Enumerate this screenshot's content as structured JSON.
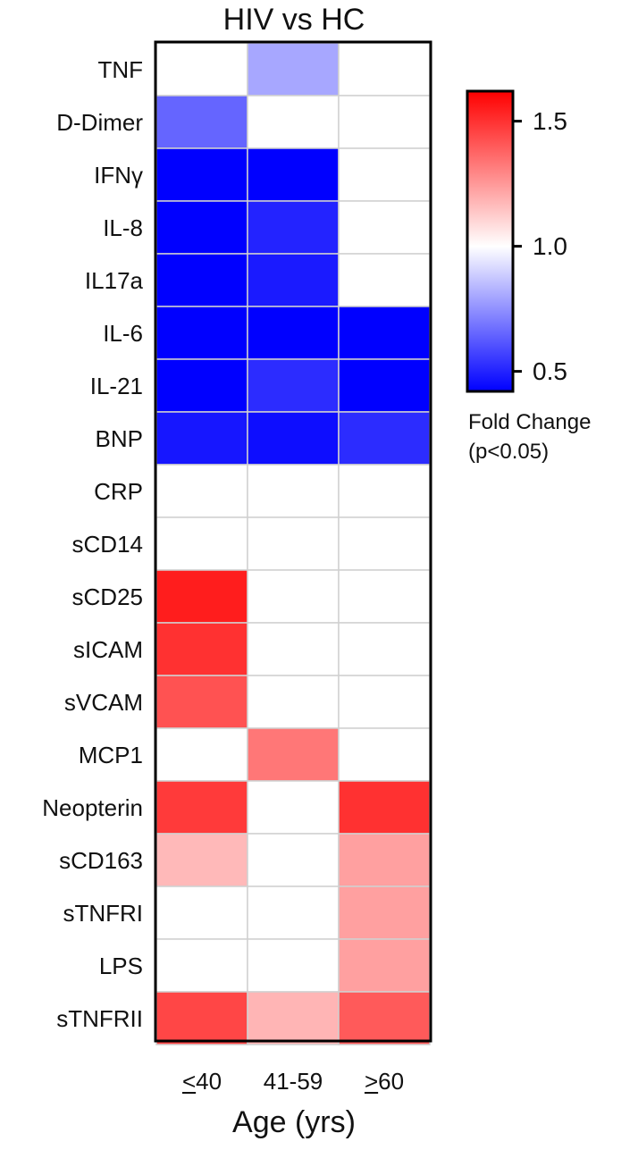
{
  "chart_data": {
    "type": "heatmap",
    "title": "HIV vs HC",
    "xlabel": "Age (yrs)",
    "ylabel": "",
    "columns": [
      {
        "label": "40",
        "prefix_symbol": "<",
        "underlined": true
      },
      {
        "label": "41-59"
      },
      {
        "label": "60",
        "prefix_symbol": ">",
        "underlined": true
      }
    ],
    "rows": [
      "TNF",
      "D-Dimer",
      "IFNγ",
      "IL-8",
      "IL17a",
      "IL-6",
      "IL-21",
      "BNP",
      "CRP",
      "sCD14",
      "sCD25",
      "sICAM",
      "sVCAM",
      "MCP1",
      "Neopterin",
      "sCD163",
      "sTNFRI",
      "LPS",
      "sTNFRII"
    ],
    "values": [
      [
        1.0,
        0.8,
        1.0
      ],
      [
        0.65,
        1.0,
        1.0
      ],
      [
        0.42,
        0.42,
        1.0
      ],
      [
        0.42,
        0.5,
        1.0
      ],
      [
        0.42,
        0.48,
        1.0
      ],
      [
        0.42,
        0.42,
        0.42
      ],
      [
        0.42,
        0.52,
        0.42
      ],
      [
        0.47,
        0.45,
        0.52
      ],
      [
        1.0,
        1.0,
        1.0
      ],
      [
        1.0,
        1.0,
        1.0
      ],
      [
        1.55,
        1.0,
        1.0
      ],
      [
        1.5,
        1.0,
        1.0
      ],
      [
        1.42,
        1.0,
        1.0
      ],
      [
        1.0,
        1.33,
        1.0
      ],
      [
        1.48,
        1.0,
        1.5
      ],
      [
        1.17,
        1.0,
        1.23
      ],
      [
        1.0,
        1.0,
        1.23
      ],
      [
        1.0,
        1.0,
        1.23
      ],
      [
        1.45,
        1.18,
        1.4
      ]
    ],
    "colorbar": {
      "min": 0.42,
      "max": 1.62,
      "ticks": [
        0.5,
        1.0,
        1.5
      ],
      "tick_labels": [
        "0.5",
        "1.0",
        "1.5"
      ],
      "title_lines": [
        "Fold Change",
        "(p<0.05)"
      ],
      "colors": {
        "low": "#0000ff",
        "mid": "#ffffff",
        "high": "#ff0000"
      }
    },
    "grid": true,
    "grid_color": "#d0d0d0"
  }
}
